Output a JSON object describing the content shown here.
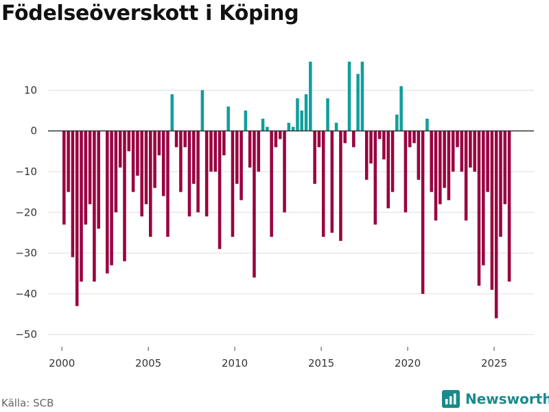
{
  "chart_data": {
    "type": "bar",
    "title": "Födelseöverskott i Köping",
    "xlabel": "",
    "ylabel": "",
    "xlim": [
      1999.2,
      2027.3
    ],
    "ylim": [
      -53,
      20
    ],
    "y_ticks": [
      10,
      0,
      -10,
      -20,
      -30,
      -40,
      -50
    ],
    "y_tick_labels": [
      "10",
      "0",
      "−10",
      "−20",
      "−30",
      "−40",
      "−50"
    ],
    "x_ticks": [
      2000,
      2005,
      2010,
      2015,
      2020,
      2025
    ],
    "x_tick_labels": [
      "2000",
      "2005",
      "2010",
      "2015",
      "2020",
      "2025"
    ],
    "colors": {
      "positive": "#119e9b",
      "negative": "#990040",
      "zero_line": "#333333",
      "grid": "#dddddd"
    },
    "series": [
      {
        "name": "Födelseöverskott",
        "x": [
          2000.125,
          2000.375,
          2000.625,
          2000.875,
          2001.125,
          2001.375,
          2001.625,
          2001.875,
          2002.125,
          2002.375,
          2002.625,
          2002.875,
          2003.125,
          2003.375,
          2003.625,
          2003.875,
          2004.125,
          2004.375,
          2004.625,
          2004.875,
          2005.125,
          2005.375,
          2005.625,
          2005.875,
          2006.125,
          2006.375,
          2006.625,
          2006.875,
          2007.125,
          2007.375,
          2007.625,
          2007.875,
          2008.125,
          2008.375,
          2008.625,
          2008.875,
          2009.125,
          2009.375,
          2009.625,
          2009.875,
          2010.125,
          2010.375,
          2010.625,
          2010.875,
          2011.125,
          2011.375,
          2011.625,
          2011.875,
          2012.125,
          2012.375,
          2012.625,
          2012.875,
          2013.125,
          2013.375,
          2013.625,
          2013.875,
          2014.125,
          2014.375,
          2014.625,
          2014.875,
          2015.125,
          2015.375,
          2015.625,
          2015.875,
          2016.125,
          2016.375,
          2016.625,
          2016.875,
          2017.125,
          2017.375,
          2017.625,
          2017.875,
          2018.125,
          2018.375,
          2018.625,
          2018.875,
          2019.125,
          2019.375,
          2019.625,
          2019.875,
          2020.125,
          2020.375,
          2020.625,
          2020.875,
          2021.125,
          2021.375,
          2021.625,
          2021.875,
          2022.125,
          2022.375,
          2022.625,
          2022.875,
          2023.125,
          2023.375,
          2023.625,
          2023.875,
          2024.125,
          2024.375,
          2024.625,
          2024.875,
          2025.125,
          2025.375,
          2025.625,
          2025.875
        ],
        "values": [
          -23,
          -15,
          -31,
          -43,
          -37,
          -23,
          -18,
          -37,
          -24,
          0,
          -35,
          -33,
          -20,
          -9,
          -32,
          -5,
          -15,
          -11,
          -21,
          -18,
          -26,
          -14,
          -6,
          -16,
          -26,
          9,
          -4,
          -15,
          -4,
          -21,
          -13,
          -20,
          10,
          -21,
          -10,
          -10,
          -29,
          -6,
          6,
          -26,
          -13,
          -17,
          5,
          -9,
          -36,
          -10,
          3,
          1,
          -26,
          -4,
          -2,
          -20,
          2,
          1,
          8,
          5,
          9,
          17,
          -13,
          -4,
          -26,
          8,
          -25,
          2,
          -27,
          -3,
          17,
          -4,
          14,
          17,
          -12,
          -8,
          -23,
          -2,
          -7,
          -19,
          -15,
          4,
          11,
          -20,
          -4,
          -3,
          -12,
          -40,
          3,
          -15,
          -22,
          -18,
          -14,
          -17,
          -10,
          -4,
          -10,
          -22,
          -9,
          -10,
          -38,
          -33,
          -15,
          -39,
          -46,
          -26,
          -18,
          -37
        ]
      }
    ]
  },
  "footer": {
    "source": "Källa: SCB",
    "brand": "Newsworthy"
  }
}
